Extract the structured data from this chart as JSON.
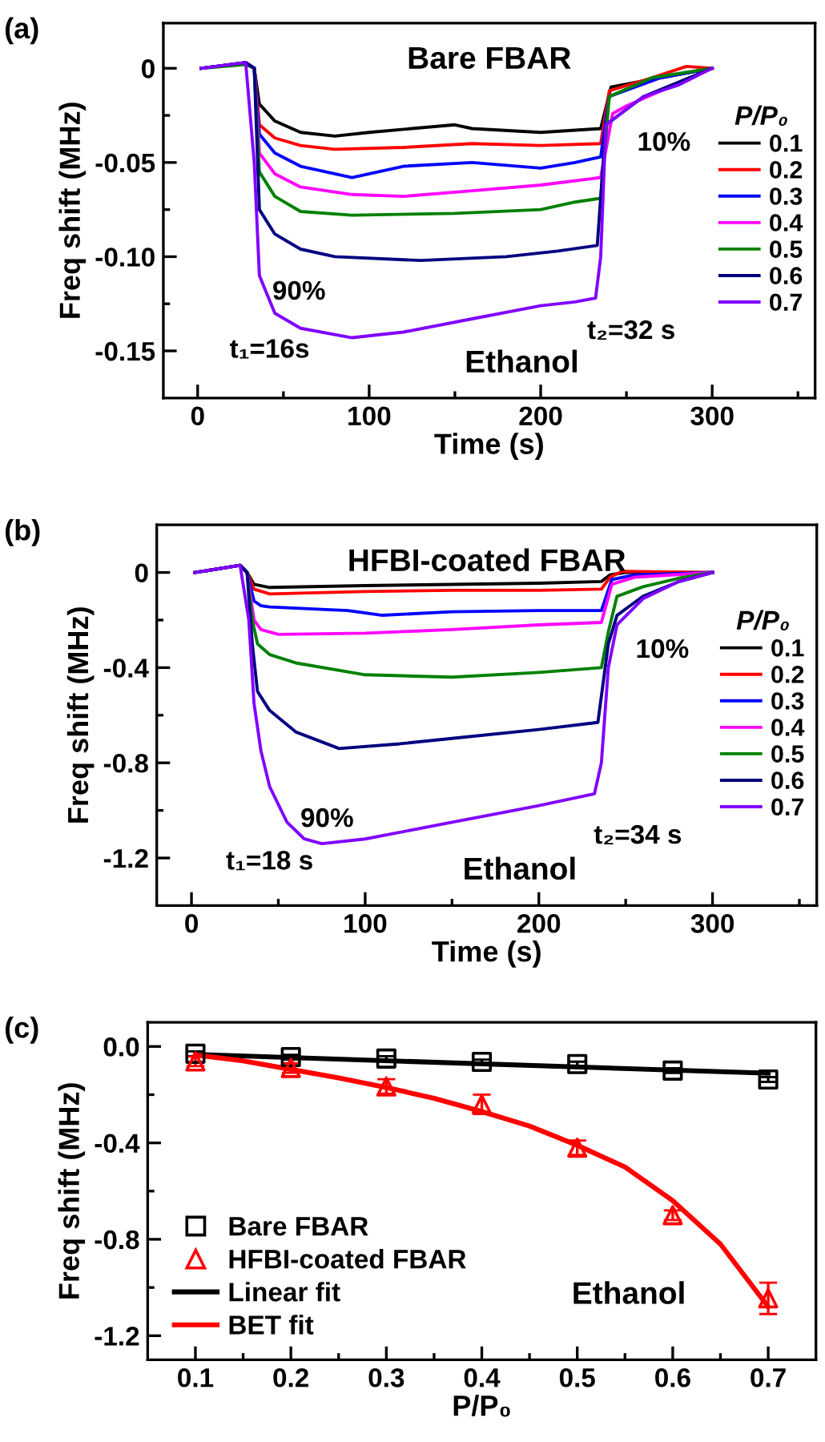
{
  "chart_data": [
    {
      "type": "line",
      "title": "Bare FBAR",
      "subtitle": "Ethanol",
      "xlabel": "Time (s)",
      "ylabel": "Freq shift (MHz)",
      "legend_title": "P/P₀",
      "legend": "right",
      "annotations": [
        "(a)",
        "90%",
        "t₁=16s",
        "10%",
        "t₂=32 s"
      ],
      "xlim": [
        -20,
        360
      ],
      "xticks": [
        0,
        {
          "value": 50,
          "label": null
        },
        100,
        {
          "value": 150,
          "label": null
        },
        200,
        {
          "value": 250,
          "label": null
        },
        300,
        {
          "value": 350,
          "label": null
        }
      ],
      "ylim": [
        -0.175,
        0.024
      ],
      "yticks": [
        {
          "value": 0,
          "label": "0"
        },
        {
          "value": -0.025,
          "label": null
        },
        {
          "value": -0.05,
          "label": "-0.05"
        },
        {
          "value": -0.075,
          "label": null
        },
        {
          "value": -0.1,
          "label": "-0.10"
        },
        {
          "value": -0.125,
          "label": null
        },
        {
          "value": -0.15,
          "label": "-0.15"
        }
      ],
      "series": [
        {
          "name": "0.1",
          "color": "#000000",
          "x": [
            2,
            28,
            33,
            36,
            45,
            60,
            80,
            100,
            150,
            160,
            200,
            235,
            241,
            270,
            300
          ],
          "values": [
            0,
            0.003,
            0,
            -0.019,
            -0.028,
            -0.034,
            -0.036,
            -0.034,
            -0.03,
            -0.032,
            -0.034,
            -0.032,
            -0.01,
            -0.005,
            0
          ]
        },
        {
          "name": "0.2",
          "color": "#ff0000",
          "x": [
            33,
            36,
            45,
            60,
            80,
            120,
            160,
            200,
            235,
            240,
            265,
            285,
            300
          ],
          "values": [
            0,
            -0.03,
            -0.037,
            -0.041,
            -0.043,
            -0.042,
            -0.04,
            -0.041,
            -0.04,
            -0.012,
            -0.005,
            0.001,
            0
          ]
        },
        {
          "name": "0.3",
          "color": "#0000ff",
          "x": [
            2,
            28,
            33,
            36,
            45,
            60,
            90,
            120,
            160,
            200,
            220,
            235,
            240,
            270,
            300
          ],
          "values": [
            0,
            0.003,
            0,
            -0.035,
            -0.045,
            -0.052,
            -0.058,
            -0.052,
            -0.05,
            -0.053,
            -0.05,
            -0.047,
            -0.015,
            -0.005,
            0
          ]
        },
        {
          "name": "0.4",
          "color": "#ff00ff",
          "x": [
            33,
            36,
            45,
            60,
            90,
            120,
            160,
            200,
            235,
            242,
            250,
            270,
            300
          ],
          "values": [
            0,
            -0.045,
            -0.056,
            -0.063,
            -0.067,
            -0.068,
            -0.065,
            -0.062,
            -0.058,
            -0.024,
            -0.02,
            -0.012,
            0
          ]
        },
        {
          "name": "0.5",
          "color": "#008000",
          "x": [
            2,
            28,
            33,
            36,
            45,
            60,
            90,
            150,
            200,
            220,
            235,
            240,
            265,
            300
          ],
          "values": [
            0,
            0.002,
            0,
            -0.055,
            -0.068,
            -0.076,
            -0.078,
            -0.077,
            -0.075,
            -0.071,
            -0.069,
            -0.015,
            -0.005,
            0
          ]
        },
        {
          "name": "0.6",
          "color": "#000080",
          "x": [
            2,
            28,
            33,
            36,
            45,
            60,
            80,
            130,
            180,
            210,
            233,
            238,
            260,
            300
          ],
          "values": [
            0,
            0.003,
            0,
            -0.075,
            -0.088,
            -0.096,
            -0.1,
            -0.102,
            -0.1,
            -0.097,
            -0.094,
            -0.03,
            -0.015,
            0
          ]
        },
        {
          "name": "0.7",
          "color": "#8000ff",
          "x": [
            2,
            28,
            33,
            36,
            45,
            60,
            90,
            120,
            160,
            200,
            220,
            232,
            235,
            238,
            260,
            280,
            300
          ],
          "values": [
            0,
            0.003,
            -0.05,
            -0.11,
            -0.13,
            -0.138,
            -0.143,
            -0.14,
            -0.133,
            -0.126,
            -0.124,
            -0.122,
            -0.1,
            -0.03,
            -0.015,
            -0.009,
            0
          ]
        }
      ]
    },
    {
      "type": "line",
      "title": "HFBI-coated FBAR",
      "subtitle": "Ethanol",
      "xlabel": "Time (s)",
      "ylabel": "Freq shift (MHz)",
      "legend_title": "P/P₀",
      "legend": "right",
      "annotations": [
        "(b)",
        "90%",
        "t₁=18 s",
        "10%",
        "t₂=34 s"
      ],
      "xlim": [
        -20,
        360
      ],
      "xticks": [
        0,
        {
          "value": 50,
          "label": null
        },
        100,
        {
          "value": 150,
          "label": null
        },
        200,
        {
          "value": 250,
          "label": null
        },
        300,
        {
          "value": 350,
          "label": null
        }
      ],
      "ylim": [
        -1.4,
        0.2
      ],
      "yticks": [
        {
          "value": 0,
          "label": "0"
        },
        {
          "value": -0.2,
          "label": null
        },
        {
          "value": -0.4,
          "label": "-0.4"
        },
        {
          "value": -0.6,
          "label": null
        },
        {
          "value": -0.8,
          "label": "-0.8"
        },
        {
          "value": -1.0,
          "label": null
        },
        {
          "value": -1.2,
          "label": "-1.2"
        }
      ],
      "series": [
        {
          "name": "0.1",
          "color": "#000000",
          "x": [
            2,
            28,
            32,
            36,
            45,
            100,
            150,
            200,
            236,
            241,
            250,
            300
          ],
          "values": [
            0,
            0.03,
            0,
            -0.05,
            -0.063,
            -0.055,
            -0.05,
            -0.045,
            -0.038,
            -0.01,
            0,
            0
          ]
        },
        {
          "name": "0.2",
          "color": "#ff0000",
          "x": [
            2,
            28,
            32,
            36,
            45,
            100,
            150,
            200,
            236,
            241,
            248,
            300
          ],
          "values": [
            0,
            0.03,
            0,
            -0.07,
            -0.09,
            -0.08,
            -0.075,
            -0.075,
            -0.07,
            -0.02,
            0.005,
            0
          ]
        },
        {
          "name": "0.3",
          "color": "#0000ff",
          "x": [
            2,
            28,
            32,
            36,
            40,
            45,
            90,
            110,
            150,
            200,
            236,
            242,
            255,
            300
          ],
          "values": [
            0,
            0.03,
            0,
            -0.12,
            -0.14,
            -0.145,
            -0.16,
            -0.18,
            -0.165,
            -0.16,
            -0.16,
            -0.03,
            -0.01,
            0
          ]
        },
        {
          "name": "0.4",
          "color": "#ff00ff",
          "x": [
            2,
            28,
            32,
            36,
            40,
            50,
            100,
            150,
            200,
            236,
            242,
            255,
            300
          ],
          "values": [
            0,
            0.03,
            0,
            -0.2,
            -0.24,
            -0.26,
            -0.255,
            -0.24,
            -0.22,
            -0.21,
            -0.05,
            -0.02,
            0
          ]
        },
        {
          "name": "0.5",
          "color": "#008000",
          "x": [
            2,
            28,
            32,
            35,
            38,
            45,
            60,
            100,
            150,
            200,
            236,
            240,
            245,
            260,
            280,
            300
          ],
          "values": [
            0,
            0.03,
            0,
            -0.2,
            -0.3,
            -0.345,
            -0.38,
            -0.43,
            -0.44,
            -0.42,
            -0.4,
            -0.25,
            -0.1,
            -0.06,
            -0.025,
            0
          ]
        },
        {
          "name": "0.6",
          "color": "#000080",
          "x": [
            2,
            28,
            32,
            35,
            38,
            45,
            60,
            85,
            120,
            160,
            200,
            234,
            240,
            245,
            260,
            280,
            300
          ],
          "values": [
            0,
            0.03,
            0,
            -0.3,
            -0.5,
            -0.58,
            -0.67,
            -0.74,
            -0.72,
            -0.69,
            -0.66,
            -0.63,
            -0.3,
            -0.18,
            -0.1,
            -0.04,
            0
          ]
        },
        {
          "name": "0.7",
          "color": "#8000ff",
          "x": [
            2,
            28,
            33,
            36,
            40,
            45,
            55,
            65,
            75,
            100,
            150,
            200,
            232,
            236,
            240,
            245,
            260,
            280,
            300
          ],
          "values": [
            0,
            0.03,
            -0.2,
            -0.55,
            -0.75,
            -0.9,
            -1.05,
            -1.12,
            -1.14,
            -1.12,
            -1.05,
            -0.98,
            -0.93,
            -0.8,
            -0.4,
            -0.22,
            -0.11,
            -0.04,
            0
          ]
        }
      ]
    },
    {
      "type": "scatter",
      "subtitle": "Ethanol",
      "xlabel": "P/P₀",
      "ylabel": "Freq shift (MHz)",
      "legend": "bottom left",
      "annotations": [
        "(c)"
      ],
      "xlim": [
        0.05,
        0.75
      ],
      "xticks": [
        0.1,
        {
          "value": 0.15,
          "label": null
        },
        0.2,
        {
          "value": 0.25,
          "label": null
        },
        0.3,
        {
          "value": 0.35,
          "label": null
        },
        0.4,
        {
          "value": 0.45,
          "label": null
        },
        0.5,
        {
          "value": 0.55,
          "label": null
        },
        0.6,
        {
          "value": 0.65,
          "label": null
        },
        0.7
      ],
      "ylim": [
        -1.3,
        0.1
      ],
      "yticks": [
        {
          "value": 0,
          "label": "0.0"
        },
        {
          "value": -0.2,
          "label": null
        },
        {
          "value": -0.4,
          "label": "-0.4"
        },
        {
          "value": -0.6,
          "label": null
        },
        {
          "value": -0.8,
          "label": "-0.8"
        },
        {
          "value": -1.0,
          "label": null
        },
        {
          "value": -1.2,
          "label": "-1.2"
        }
      ],
      "series": [
        {
          "name": "Bare FBAR",
          "type": "scatter",
          "marker": "square",
          "color": "#000000",
          "x": [
            0.1,
            0.2,
            0.3,
            0.4,
            0.5,
            0.6,
            0.7
          ],
          "values": [
            -0.03,
            -0.044,
            -0.05,
            -0.064,
            -0.073,
            -0.1,
            -0.137
          ],
          "errors": [
            0.01,
            0.01,
            0.01,
            0.01,
            0.01,
            0.01,
            0.01
          ]
        },
        {
          "name": "HFBI-coated FBAR",
          "type": "scatter",
          "marker": "triangle",
          "color": "#ff0000",
          "x": [
            0.1,
            0.2,
            0.3,
            0.4,
            0.5,
            0.6,
            0.7
          ],
          "values": [
            -0.062,
            -0.089,
            -0.166,
            -0.24,
            -0.42,
            -0.7,
            -1.045
          ],
          "errors": [
            0.02,
            0.02,
            0.03,
            0.04,
            0.03,
            0.02,
            0.065
          ]
        },
        {
          "name": "Linear fit",
          "type": "line",
          "color": "#000000",
          "x": [
            0.1,
            0.7
          ],
          "values": [
            -0.033,
            -0.111
          ]
        },
        {
          "name": "BET fit",
          "type": "line",
          "color": "#ff0000",
          "x": [
            0.1,
            0.15,
            0.2,
            0.25,
            0.3,
            0.35,
            0.4,
            0.45,
            0.5,
            0.55,
            0.6,
            0.65,
            0.7
          ],
          "values": [
            -0.035,
            -0.06,
            -0.095,
            -0.13,
            -0.17,
            -0.215,
            -0.27,
            -0.33,
            -0.41,
            -0.5,
            -0.64,
            -0.82,
            -1.08
          ]
        }
      ]
    }
  ]
}
